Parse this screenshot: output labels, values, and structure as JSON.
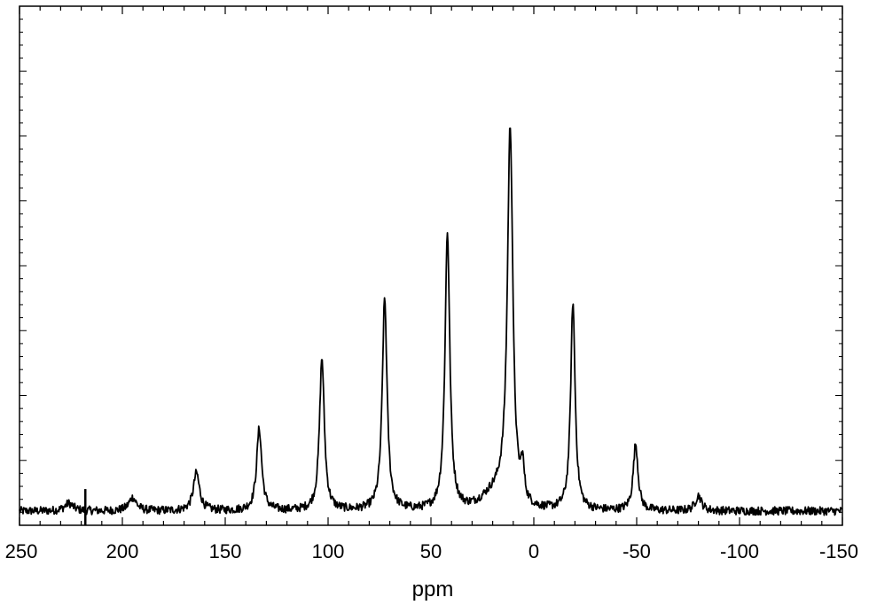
{
  "chart_data": {
    "type": "line",
    "title": "",
    "xlabel": "ppm",
    "ylabel": "",
    "xlim": [
      250,
      -150
    ],
    "ylim": [
      0,
      1.0
    ],
    "x_reversed": true,
    "grid": false,
    "x_ticks": [
      250,
      200,
      150,
      100,
      50,
      0,
      -50,
      -100,
      -150
    ],
    "x_tick_labels": [
      "250",
      "200",
      "150",
      "100",
      "50",
      "0",
      "-50",
      "-100",
      "-150"
    ],
    "series": [
      {
        "baseline": 0.0,
        "peaks": [
          {
            "x": 226,
            "height": 0.02,
            "width": 2.5
          },
          {
            "x": 195,
            "height": 0.035,
            "width": 2.2
          },
          {
            "x": 164,
            "height": 0.1,
            "width": 1.8
          },
          {
            "x": 133.5,
            "height": 0.215,
            "width": 1.5
          },
          {
            "x": 103,
            "height": 0.4,
            "width": 1.4
          },
          {
            "x": 72.5,
            "height": 0.555,
            "width": 1.4
          },
          {
            "x": 42,
            "height": 0.73,
            "width": 1.4
          },
          {
            "x": 11.5,
            "height": 0.975,
            "width": 1.6
          },
          {
            "x": 5.5,
            "height": 0.09,
            "width": 1.0
          },
          {
            "x": -19,
            "height": 0.545,
            "width": 1.3
          },
          {
            "x": -49.5,
            "height": 0.175,
            "width": 1.4
          },
          {
            "x": -80,
            "height": 0.04,
            "width": 1.8
          }
        ],
        "broad_shoulder": {
          "x": 20,
          "height": 0.06,
          "width": 10
        },
        "artifact": {
          "x": 218,
          "value": 0.03
        }
      }
    ]
  }
}
